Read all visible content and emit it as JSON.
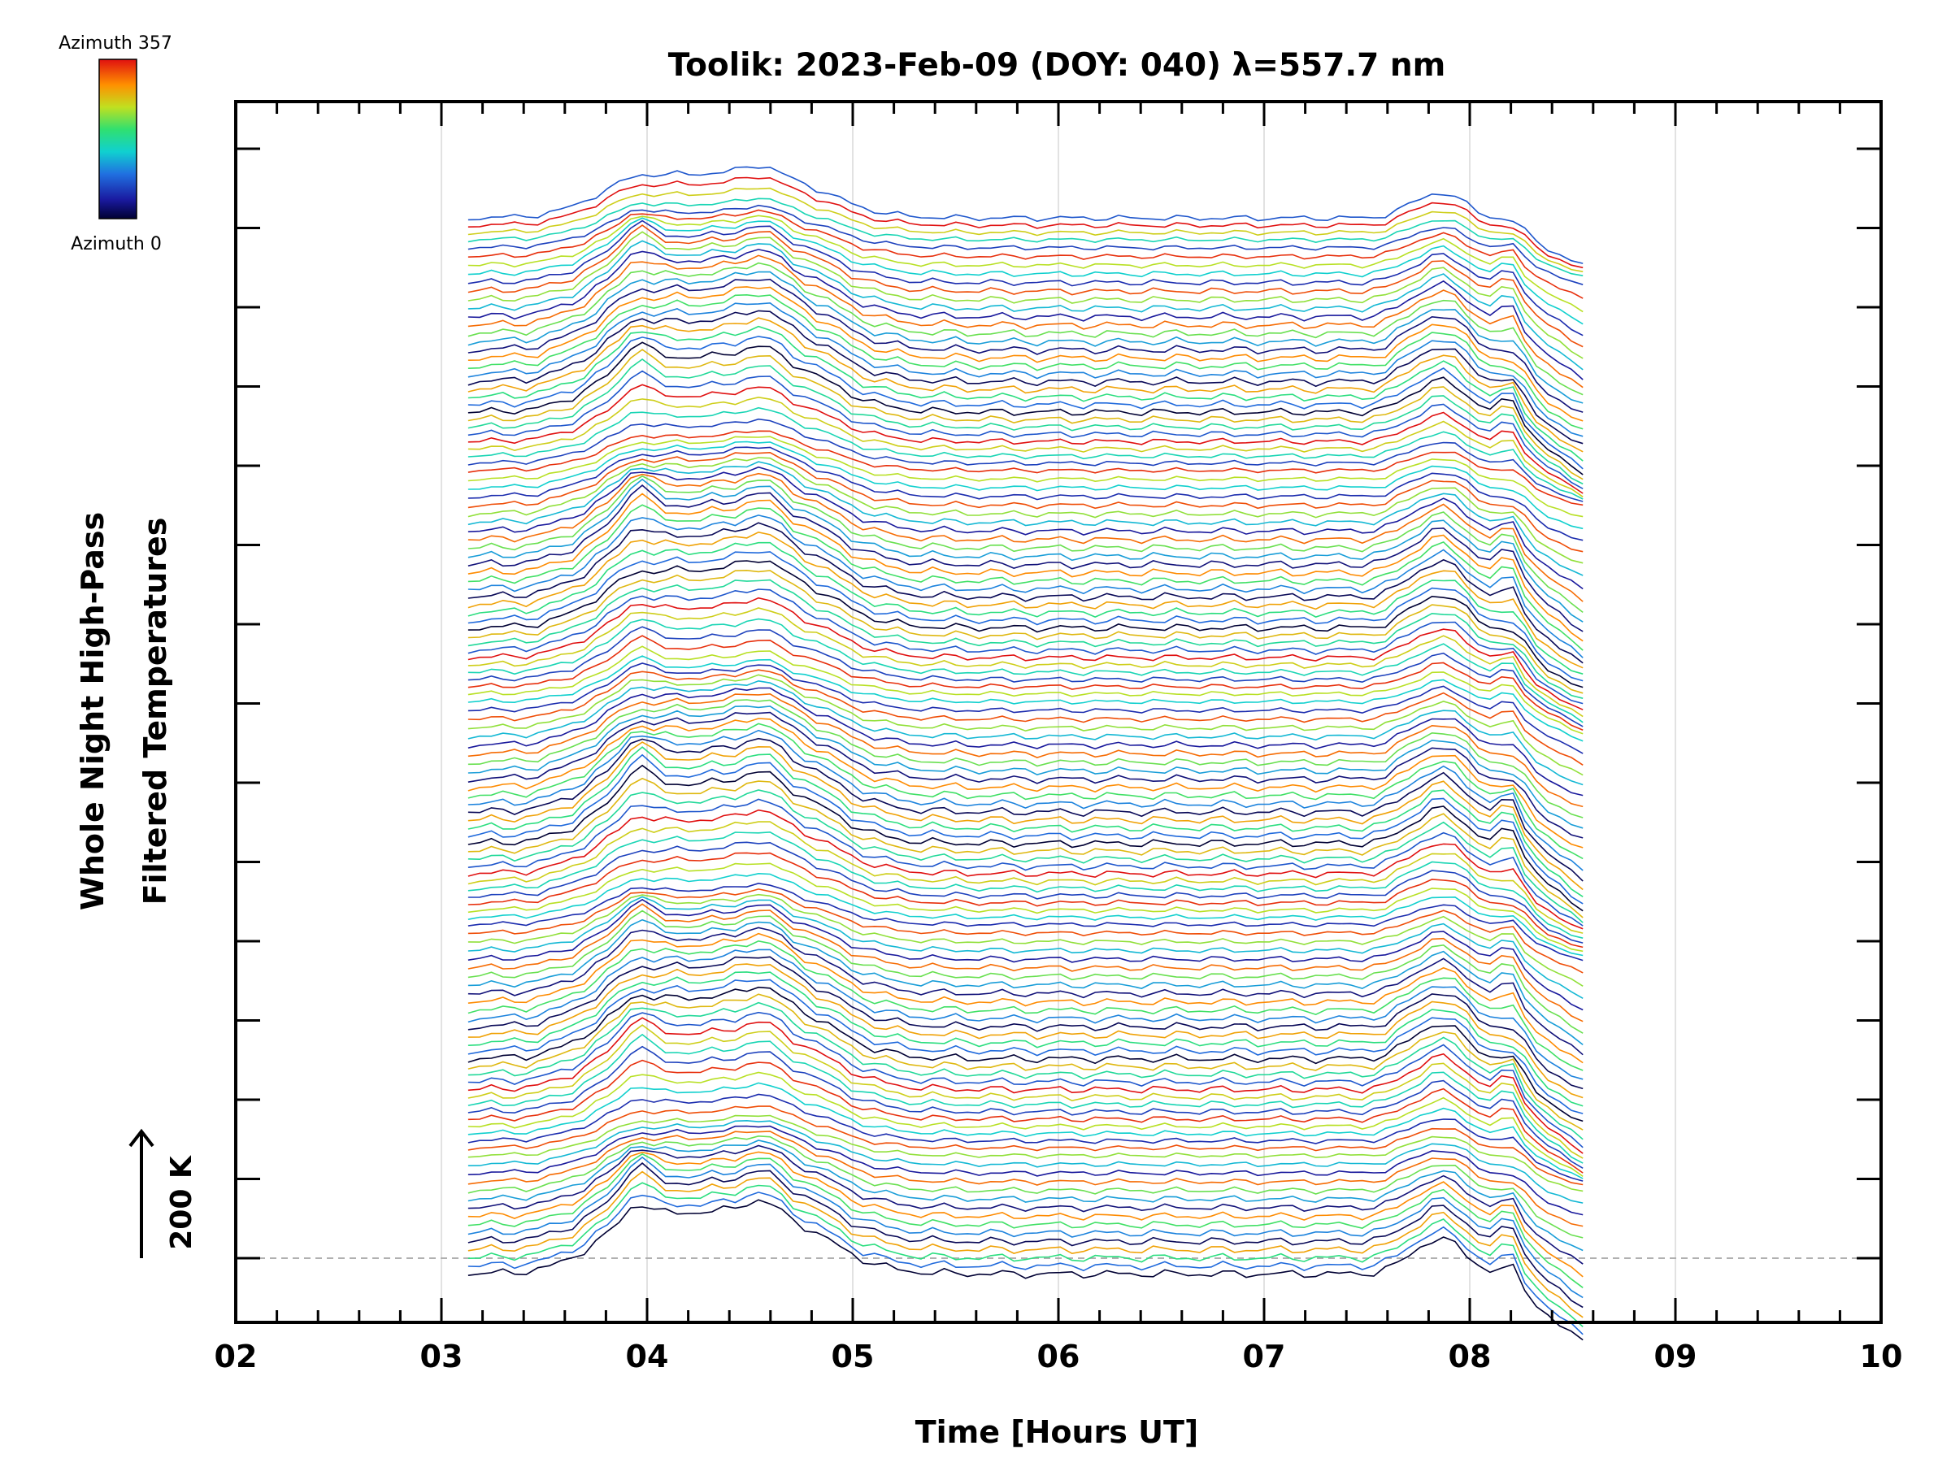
{
  "chart_data": {
    "type": "line",
    "title": "Toolik: 2023-Feb-09 (DOY: 040) λ=557.7 nm",
    "xlabel": "Time [Hours UT]",
    "ylabel_line1": "Whole Night High-Pass",
    "ylabel_line2": "Filtered Temperatures",
    "xlim": [
      2,
      10
    ],
    "x_tick_labels": [
      "02",
      "03",
      "04",
      "05",
      "06",
      "07",
      "08",
      "09",
      "10"
    ],
    "y_scale_bar": "200 K",
    "colorbar": {
      "top_label": "Azimuth 357",
      "bottom_label": "Azimuth 0",
      "colormap": "rainbow"
    },
    "grid_x": true,
    "baseline_dashed": true,
    "series_count": 133,
    "azimuth_range": [
      0,
      357
    ],
    "time_range": [
      3.13,
      8.55
    ],
    "note_series": "Stacked filtered temperature traces, one per azimuth bin, each offset vertically"
  }
}
